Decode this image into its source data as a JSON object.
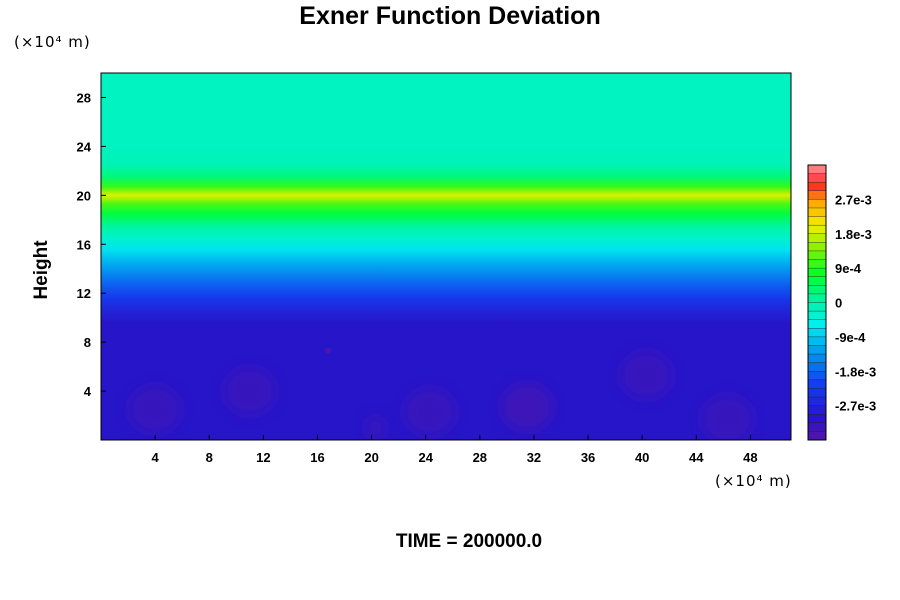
{
  "chart_data": {
    "type": "heatmap",
    "title": "Exner Function Deviation",
    "ylabel": "Height",
    "x_unit": "(×10⁴ m)",
    "y_unit": "(×10⁴ m)",
    "caption": "TIME = 200000.0",
    "xlim": [
      0,
      51
    ],
    "ylim": [
      0,
      30
    ],
    "x_ticks": [
      4,
      8,
      12,
      16,
      20,
      24,
      28,
      32,
      36,
      40,
      44,
      48
    ],
    "y_ticks": [
      4,
      8,
      12,
      16,
      20,
      24,
      28
    ],
    "colorbar": {
      "min": -0.0036,
      "max": 0.0036,
      "tick_labels": [
        "2.7e-3",
        "1.8e-3",
        "9e-4",
        "0",
        "-9e-4",
        "-1.8e-3",
        "-2.7e-3"
      ],
      "tick_values": [
        0.0027,
        0.0018,
        0.0009,
        0,
        -0.0009,
        -0.0018,
        -0.0027
      ]
    },
    "vertical_profile": {
      "height": [
        0,
        9.5,
        10.5,
        11.5,
        12.5,
        13.5,
        14.5,
        15.5,
        16.5,
        17.5,
        18.5,
        19.3,
        20.0,
        20.7,
        21.5,
        22.5,
        24.0,
        30.0
      ],
      "value": [
        -0.003,
        -0.003,
        -0.0027,
        -0.0023,
        -0.0019,
        -0.0015,
        -0.0011,
        -0.0007,
        -0.0003,
        0.0001,
        0.0006,
        0.0011,
        0.0019,
        0.001,
        0.0003,
        -0.0001,
        -0.0002,
        -0.0002
      ]
    },
    "low_level_features": [
      {
        "x": 4,
        "y": 2.5,
        "value": -0.0033
      },
      {
        "x": 11,
        "y": 4,
        "value": -0.0033
      },
      {
        "x": 16.8,
        "y": 7.3,
        "value": -0.0035
      },
      {
        "x": 20.3,
        "y": 1,
        "value": -0.0033
      },
      {
        "x": 24.3,
        "y": 2.3,
        "value": -0.0033
      },
      {
        "x": 31.5,
        "y": 2.7,
        "value": -0.0034
      },
      {
        "x": 40.3,
        "y": 5.3,
        "value": -0.0033
      },
      {
        "x": 46.3,
        "y": 1.7,
        "value": -0.0033
      }
    ]
  }
}
